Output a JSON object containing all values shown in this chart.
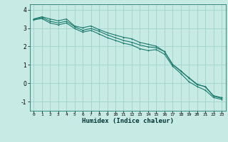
{
  "xlabel": "Humidex (Indice chaleur)",
  "ylabel": "",
  "xlim": [
    -0.5,
    23.5
  ],
  "ylim": [
    -1.5,
    4.3
  ],
  "yticks": [
    -1,
    0,
    1,
    2,
    3,
    4
  ],
  "xticks": [
    0,
    1,
    2,
    3,
    4,
    5,
    6,
    7,
    8,
    9,
    10,
    11,
    12,
    13,
    14,
    15,
    16,
    17,
    18,
    19,
    20,
    21,
    22,
    23
  ],
  "bg_color": "#c8eae4",
  "grid_color": "#a0d4cc",
  "line_color": "#1a7a6e",
  "line1_x": [
    0,
    1,
    2,
    3,
    4,
    5,
    6,
    7,
    8,
    9,
    10,
    11,
    12,
    13,
    14,
    15,
    16,
    17,
    18,
    19,
    20,
    21,
    22,
    23
  ],
  "line1_y": [
    3.5,
    3.62,
    3.5,
    3.4,
    3.5,
    3.12,
    3.02,
    3.12,
    2.92,
    2.75,
    2.62,
    2.5,
    2.42,
    2.22,
    2.12,
    2.02,
    1.72,
    1.02,
    0.65,
    0.3,
    -0.05,
    -0.2,
    -0.7,
    -0.82
  ],
  "line2_x": [
    0,
    1,
    2,
    3,
    4,
    5,
    6,
    7,
    8,
    9,
    10,
    11,
    12,
    13,
    14,
    15,
    16,
    17,
    18,
    19,
    20,
    21,
    22,
    23
  ],
  "line2_y": [
    3.48,
    3.58,
    3.38,
    3.28,
    3.38,
    3.08,
    2.88,
    2.98,
    2.83,
    2.63,
    2.48,
    2.33,
    2.23,
    2.08,
    1.98,
    1.93,
    1.73,
    1.03,
    0.68,
    0.28,
    -0.08,
    -0.18,
    -0.68,
    -0.78
  ],
  "line3_x": [
    0,
    1,
    2,
    3,
    4,
    5,
    6,
    7,
    8,
    9,
    10,
    11,
    12,
    13,
    14,
    15,
    16,
    17,
    18,
    19,
    20,
    21,
    22,
    23
  ],
  "line3_y": [
    3.45,
    3.52,
    3.28,
    3.18,
    3.28,
    2.98,
    2.78,
    2.88,
    2.68,
    2.48,
    2.33,
    2.18,
    2.08,
    1.88,
    1.78,
    1.83,
    1.58,
    0.93,
    0.53,
    0.08,
    -0.18,
    -0.38,
    -0.78,
    -0.88
  ]
}
